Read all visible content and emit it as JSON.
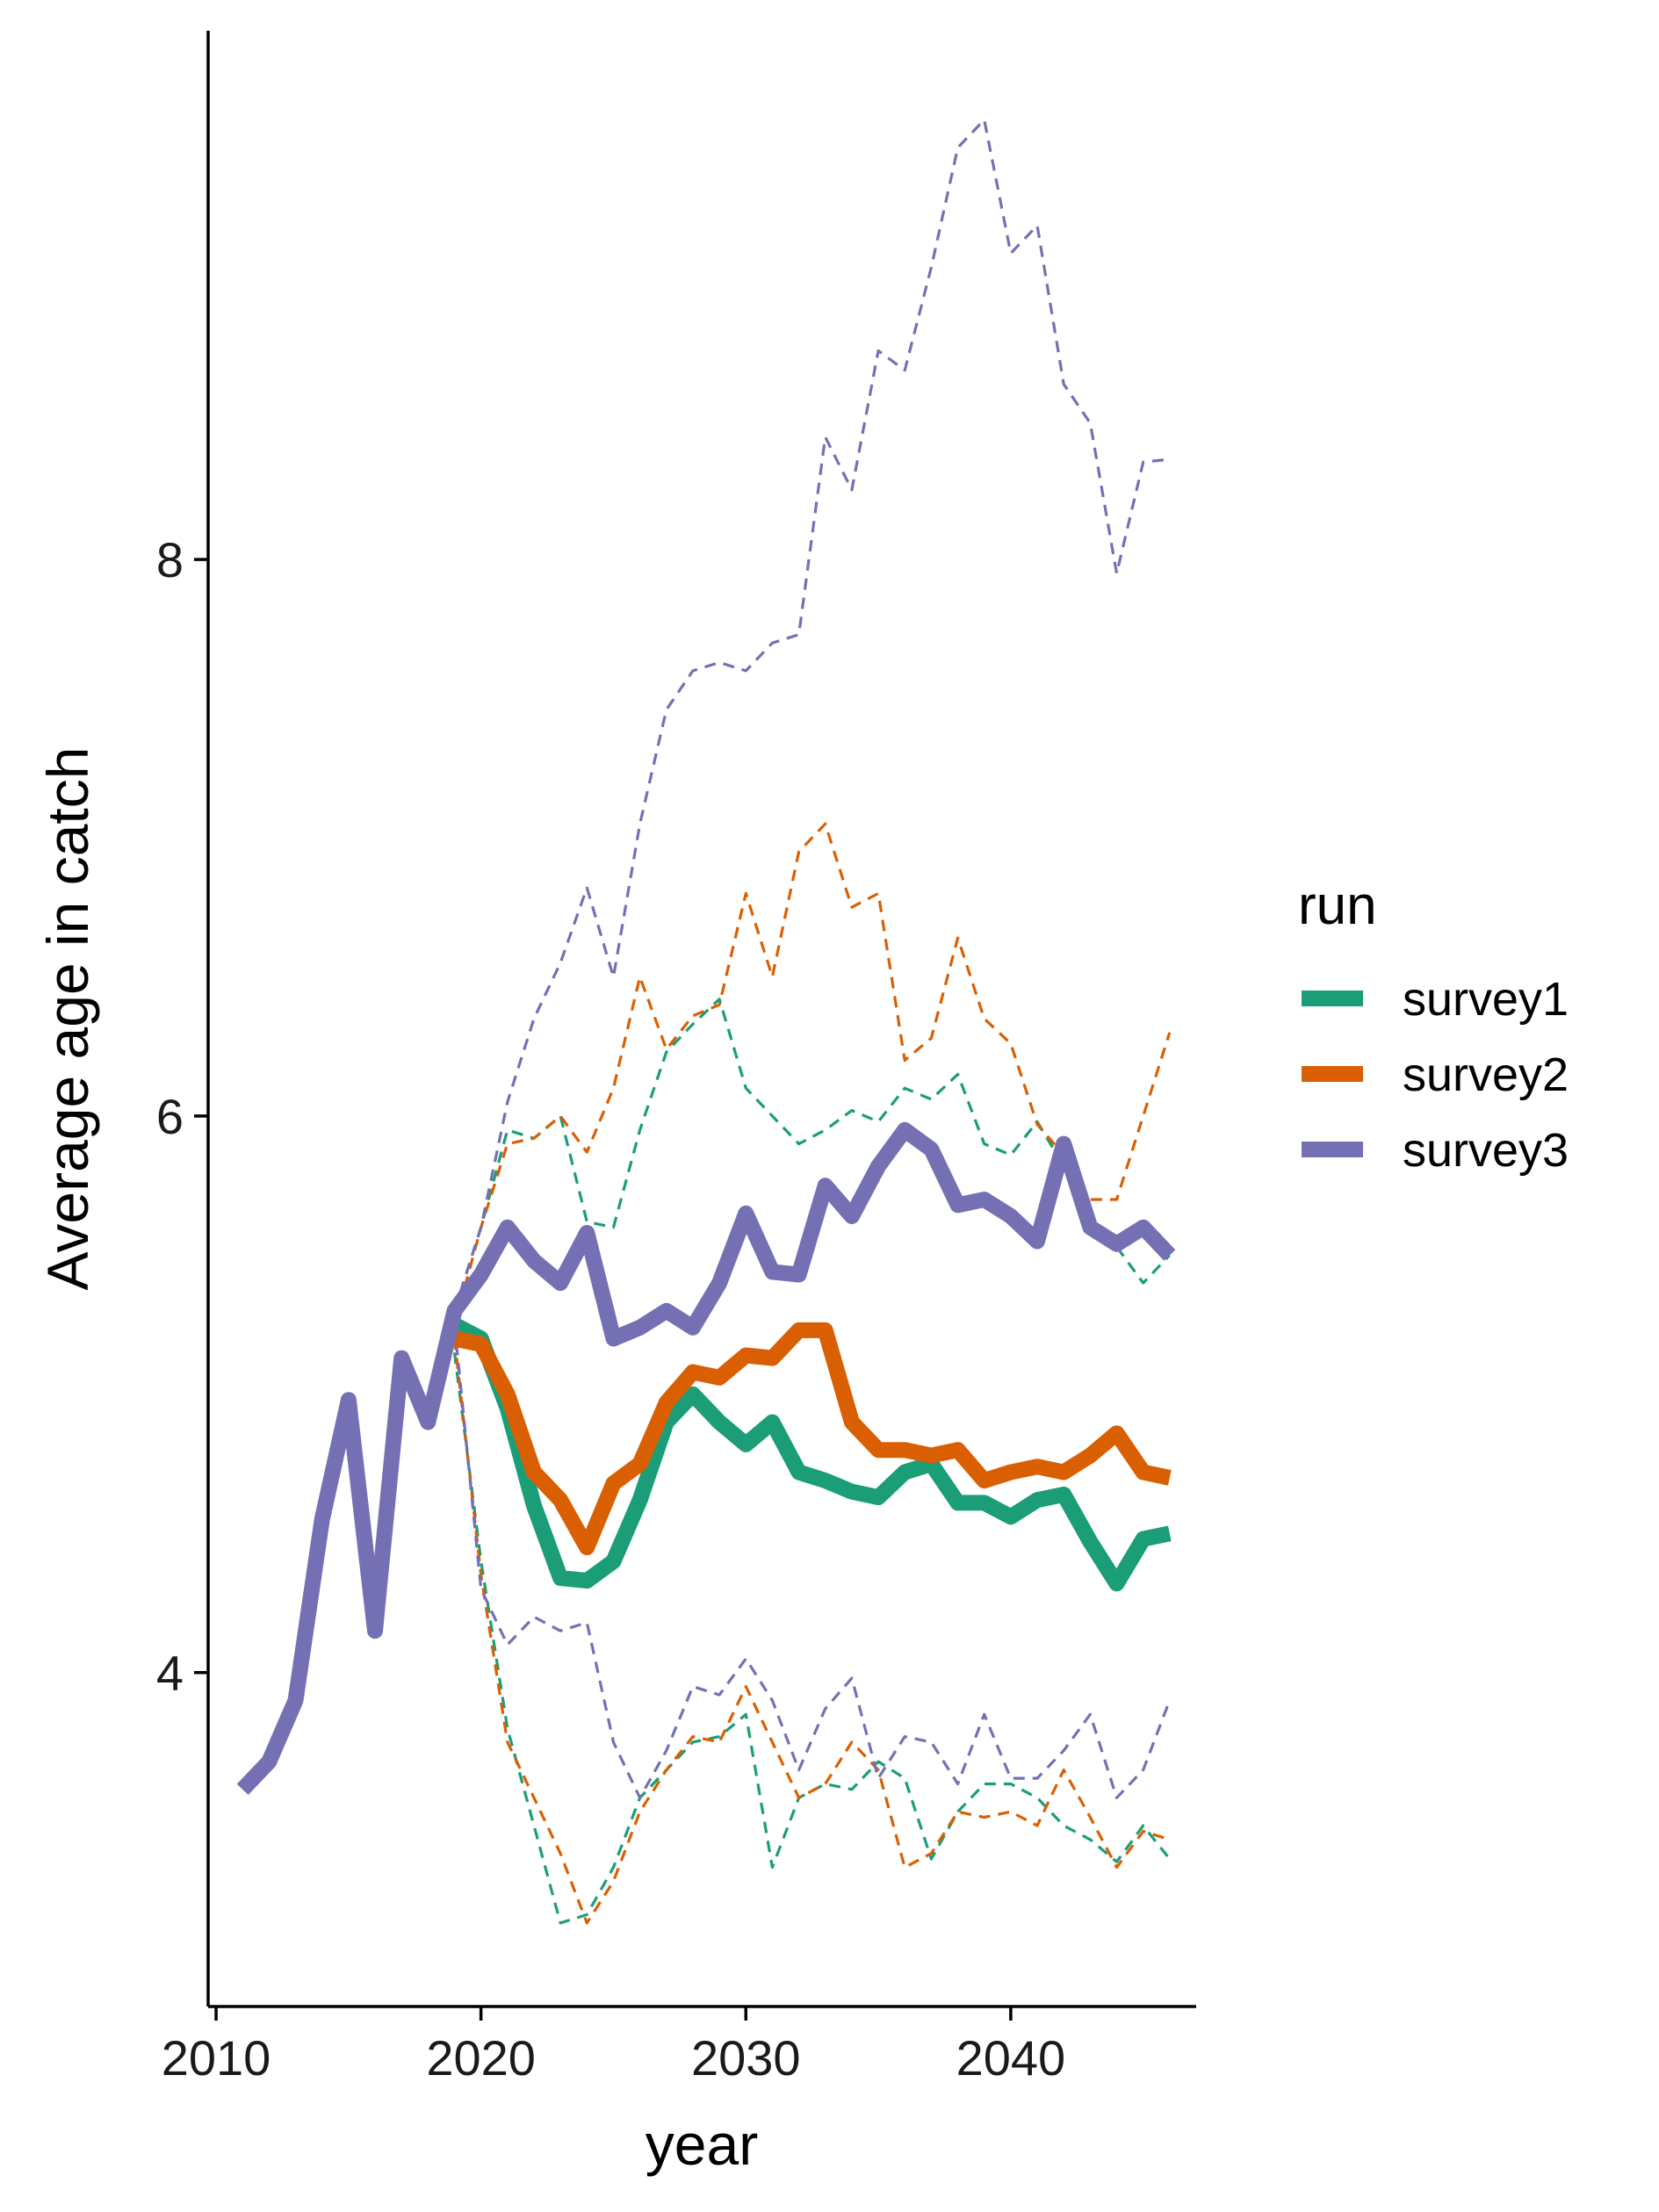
{
  "chart_data": {
    "type": "line",
    "xlabel": "year",
    "ylabel": "Average age in catch",
    "xlim": [
      2009.7,
      2047.0
    ],
    "ylim": [
      2.8,
      9.9
    ],
    "x_ticks": [
      2010,
      2020,
      2030,
      2040
    ],
    "y_ticks": [
      4,
      6,
      8
    ],
    "legend": {
      "title": "run",
      "position": "right"
    },
    "colors": {
      "survey1": "#1b9e77",
      "survey2": "#d95f02",
      "survey3": "#7570b3"
    },
    "series": [
      {
        "name": "survey1",
        "color": "#1b9e77",
        "median": {
          "x": [
            2019,
            2020,
            2021,
            2022,
            2023,
            2024,
            2025,
            2026,
            2027,
            2028,
            2029,
            2030,
            2031,
            2032,
            2033,
            2034,
            2035,
            2036,
            2037,
            2038,
            2039,
            2040,
            2041,
            2042,
            2043,
            2044,
            2045,
            2046
          ],
          "y": [
            5.25,
            5.2,
            4.95,
            4.6,
            4.34,
            4.33,
            4.4,
            4.62,
            4.9,
            5.0,
            4.9,
            4.82,
            4.9,
            4.72,
            4.69,
            4.65,
            4.63,
            4.72,
            4.75,
            4.61,
            4.61,
            4.56,
            4.62,
            4.64,
            4.47,
            4.32,
            4.48,
            4.5
          ]
        },
        "upper": {
          "x": [
            2019,
            2020,
            2021,
            2022,
            2023,
            2024,
            2025,
            2026,
            2027,
            2028,
            2029,
            2030,
            2031,
            2032,
            2033,
            2034,
            2035,
            2036,
            2037,
            2038,
            2039,
            2040,
            2041,
            2042,
            2043,
            2044,
            2045,
            2046
          ],
          "y": [
            5.3,
            5.6,
            5.95,
            5.92,
            6.0,
            5.62,
            5.6,
            5.95,
            6.23,
            6.33,
            6.42,
            6.1,
            6.0,
            5.9,
            5.95,
            6.02,
            5.98,
            6.1,
            6.06,
            6.15,
            5.9,
            5.86,
            5.98,
            5.82,
            5.58,
            5.53,
            5.4,
            5.5
          ]
        },
        "lower": {
          "x": [
            2019,
            2020,
            2021,
            2022,
            2023,
            2024,
            2025,
            2026,
            2027,
            2028,
            2029,
            2030,
            2031,
            2032,
            2033,
            2034,
            2035,
            2036,
            2037,
            2038,
            2039,
            2040,
            2041,
            2042,
            2043,
            2044,
            2045,
            2046
          ],
          "y": [
            5.15,
            4.4,
            3.8,
            3.45,
            3.1,
            3.13,
            3.3,
            3.55,
            3.65,
            3.75,
            3.77,
            3.85,
            3.3,
            3.55,
            3.6,
            3.58,
            3.68,
            3.62,
            3.33,
            3.5,
            3.6,
            3.6,
            3.55,
            3.45,
            3.4,
            3.32,
            3.45,
            3.33
          ]
        }
      },
      {
        "name": "survey2",
        "color": "#d95f02",
        "median": {
          "x": [
            2019,
            2020,
            2021,
            2022,
            2023,
            2024,
            2025,
            2026,
            2027,
            2028,
            2029,
            2030,
            2031,
            2032,
            2033,
            2034,
            2035,
            2036,
            2037,
            2038,
            2039,
            2040,
            2041,
            2042,
            2043,
            2044,
            2045,
            2046
          ],
          "y": [
            5.2,
            5.18,
            5.0,
            4.72,
            4.62,
            4.45,
            4.68,
            4.75,
            4.97,
            5.08,
            5.06,
            5.14,
            5.13,
            5.23,
            5.23,
            4.9,
            4.8,
            4.8,
            4.78,
            4.8,
            4.69,
            4.72,
            4.74,
            4.72,
            4.78,
            4.86,
            4.72,
            4.7
          ]
        },
        "upper": {
          "x": [
            2019,
            2020,
            2021,
            2022,
            2023,
            2024,
            2025,
            2026,
            2027,
            2028,
            2029,
            2030,
            2031,
            2032,
            2033,
            2034,
            2035,
            2036,
            2037,
            2038,
            2039,
            2040,
            2041,
            2042,
            2043,
            2044,
            2045,
            2046
          ],
          "y": [
            5.25,
            5.6,
            5.9,
            5.92,
            6.0,
            5.87,
            6.1,
            6.5,
            6.24,
            6.36,
            6.4,
            6.8,
            6.5,
            6.95,
            7.05,
            6.75,
            6.8,
            6.2,
            6.28,
            6.64,
            6.35,
            6.26,
            5.97,
            5.86,
            5.7,
            5.7,
            6.0,
            6.3
          ]
        },
        "lower": {
          "x": [
            2019,
            2020,
            2021,
            2022,
            2023,
            2024,
            2025,
            2026,
            2027,
            2028,
            2029,
            2030,
            2031,
            2032,
            2033,
            2034,
            2035,
            2036,
            2037,
            2038,
            2039,
            2040,
            2041,
            2042,
            2043,
            2044,
            2045,
            2046
          ],
          "y": [
            5.2,
            4.35,
            3.75,
            3.55,
            3.35,
            3.1,
            3.25,
            3.5,
            3.65,
            3.77,
            3.75,
            3.95,
            3.75,
            3.55,
            3.6,
            3.75,
            3.65,
            3.3,
            3.35,
            3.5,
            3.48,
            3.5,
            3.45,
            3.65,
            3.48,
            3.3,
            3.43,
            3.4
          ]
        }
      },
      {
        "name": "survey3",
        "color": "#7570b3",
        "median": {
          "x": [
            2011,
            2012,
            2013,
            2014,
            2015,
            2016,
            2017,
            2018,
            2019,
            2020,
            2021,
            2022,
            2023,
            2024,
            2025,
            2026,
            2027,
            2028,
            2029,
            2030,
            2031,
            2032,
            2033,
            2034,
            2035,
            2036,
            2037,
            2038,
            2039,
            2040,
            2041,
            2042,
            2043,
            2044,
            2045,
            2046
          ],
          "y": [
            3.58,
            3.68,
            3.9,
            4.55,
            4.98,
            4.15,
            5.13,
            4.9,
            5.3,
            5.43,
            5.6,
            5.48,
            5.4,
            5.58,
            5.2,
            5.24,
            5.3,
            5.24,
            5.4,
            5.65,
            5.44,
            5.43,
            5.75,
            5.64,
            5.82,
            5.95,
            5.88,
            5.68,
            5.7,
            5.64,
            5.55,
            5.9,
            5.6,
            5.54,
            5.6,
            5.5
          ]
        },
        "upper": {
          "x": [
            2019,
            2020,
            2021,
            2022,
            2023,
            2024,
            2025,
            2026,
            2027,
            2028,
            2029,
            2030,
            2031,
            2032,
            2033,
            2034,
            2035,
            2036,
            2037,
            2038,
            2039,
            2040,
            2041,
            2042,
            2043,
            2044,
            2045,
            2046
          ],
          "y": [
            5.3,
            5.6,
            6.05,
            6.35,
            6.55,
            6.82,
            6.5,
            7.05,
            7.46,
            7.6,
            7.63,
            7.6,
            7.7,
            7.73,
            8.44,
            8.25,
            8.75,
            8.68,
            9.05,
            9.48,
            9.58,
            9.1,
            9.2,
            8.63,
            8.49,
            7.95,
            8.35,
            8.36
          ]
        },
        "lower": {
          "x": [
            2019,
            2020,
            2021,
            2022,
            2023,
            2024,
            2025,
            2026,
            2027,
            2028,
            2029,
            2030,
            2031,
            2032,
            2033,
            2034,
            2035,
            2036,
            2037,
            2038,
            2039,
            2040,
            2041,
            2042,
            2043,
            2044,
            2045,
            2046
          ],
          "y": [
            5.25,
            4.3,
            4.1,
            4.2,
            4.15,
            4.18,
            3.75,
            3.55,
            3.72,
            3.95,
            3.92,
            4.05,
            3.9,
            3.65,
            3.87,
            3.98,
            3.62,
            3.77,
            3.75,
            3.6,
            3.85,
            3.62,
            3.62,
            3.72,
            3.85,
            3.55,
            3.65,
            3.9
          ]
        }
      }
    ]
  }
}
